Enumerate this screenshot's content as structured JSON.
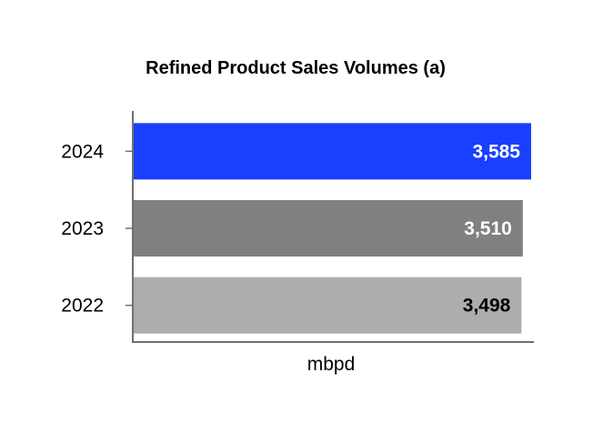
{
  "chart_data": {
    "type": "bar",
    "orientation": "horizontal",
    "title": "Refined Product Sales Volumes (a)",
    "xlabel": "mbpd",
    "ylabel": "",
    "categories": [
      "2024",
      "2023",
      "2022"
    ],
    "values": [
      3585,
      3510,
      3498
    ],
    "value_labels": [
      "3,585",
      "3,510",
      "3,498"
    ],
    "bar_colors": [
      "#1a3fff",
      "#808080",
      "#adadad"
    ],
    "label_colors": [
      "#ffffff",
      "#ffffff",
      "#000000"
    ],
    "xlim": [
      0,
      3585
    ],
    "grid": false,
    "legend": "none"
  }
}
